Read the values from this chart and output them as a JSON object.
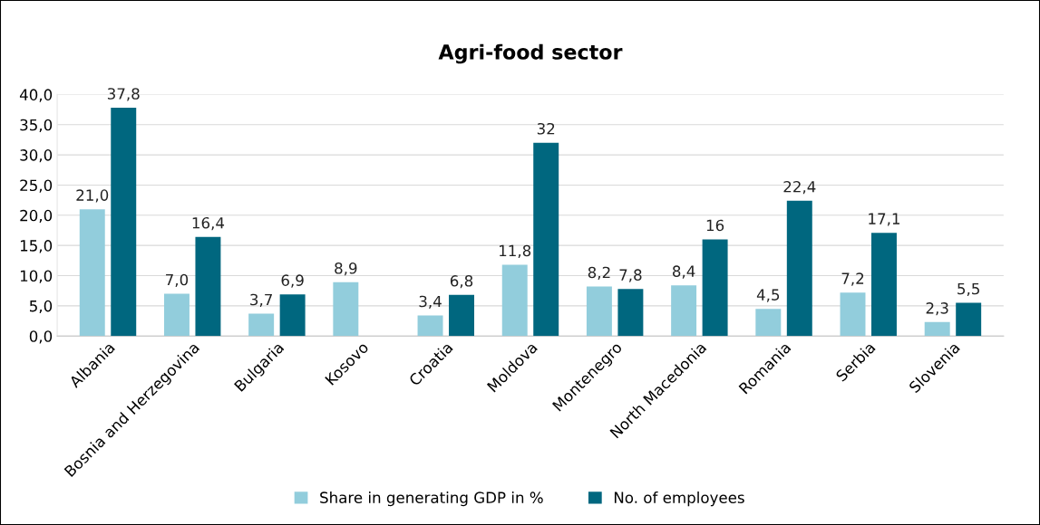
{
  "chart_data": {
    "type": "bar",
    "title": "Agri-food sector",
    "categories": [
      "Albania",
      "Bosnia and Herzegovina",
      "Bulgaria",
      "Kosovo",
      "Croatia",
      "Moldova",
      "Montenegro",
      "North Macedonia",
      "Romania",
      "Serbia",
      "Slovenia"
    ],
    "series": [
      {
        "name": "Share in generating GDP in %",
        "color": "#92cddc",
        "values": [
          21.0,
          7.0,
          3.7,
          8.9,
          3.4,
          11.8,
          8.2,
          8.4,
          4.5,
          7.2,
          2.3
        ],
        "value_labels": [
          "21,0",
          "7,0",
          "3,7",
          "8,9",
          "3,4",
          "11,8",
          "8,2",
          "8,4",
          "4,5",
          "7,2",
          "2,3"
        ]
      },
      {
        "name": "No. of employees",
        "color": "#00677f",
        "values": [
          37.8,
          16.4,
          6.9,
          null,
          6.8,
          32,
          7.8,
          16,
          22.4,
          17.1,
          5.5
        ],
        "value_labels": [
          "37,8",
          "16,4",
          "6,9",
          null,
          "6,8",
          "32",
          "7,8",
          "16",
          "22,4",
          "17,1",
          "5,5"
        ]
      }
    ],
    "ylim": [
      0,
      40
    ],
    "yticks": [
      {
        "value": 0,
        "label": "0,0"
      },
      {
        "value": 5,
        "label": "5,0"
      },
      {
        "value": 10,
        "label": "10,0"
      },
      {
        "value": 15,
        "label": "15,0"
      },
      {
        "value": 20,
        "label": "20,0"
      },
      {
        "value": 25,
        "label": "25,0"
      },
      {
        "value": 30,
        "label": "30,0"
      },
      {
        "value": 35,
        "label": "35,0"
      },
      {
        "value": 40,
        "label": "40,0"
      }
    ],
    "grid": "y",
    "legend": "bottom"
  }
}
